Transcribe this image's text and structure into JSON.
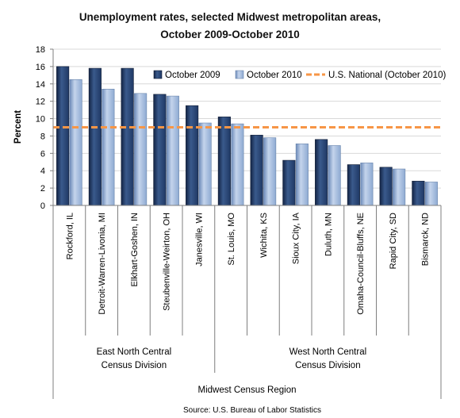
{
  "chart_data": {
    "type": "bar",
    "title_line1": "Unemployment rates, selected Midwest metropolitan areas,",
    "title_line2": "October 2009-October 2010",
    "ylabel": "Percent",
    "xlabel": "",
    "ylim": [
      0,
      18
    ],
    "yticks": [
      0,
      2,
      4,
      6,
      8,
      10,
      12,
      14,
      16,
      18
    ],
    "grid": true,
    "legend_position": "top-right",
    "categories": [
      "Rockford, IL",
      "Detroit-Warren-Livonia, MI",
      "Elkhart-Goshen, IN",
      "Steubenville-Weirton, OH",
      "Janesville, WI",
      "St. Louis, MO",
      "Wichita, KS",
      "Sioux City, IA",
      "Duluth, MN",
      "Omaha-Council-Bluffs, NE",
      "Rapid City, SD",
      "Bismarck, ND"
    ],
    "series": [
      {
        "name": "October 2009",
        "color": "#1f3864",
        "values": [
          16.0,
          15.8,
          15.8,
          12.8,
          11.5,
          10.2,
          8.1,
          5.2,
          7.6,
          4.7,
          4.4,
          2.8
        ]
      },
      {
        "name": "October 2010",
        "color": "#8eaad2",
        "values": [
          14.5,
          13.4,
          12.9,
          12.6,
          9.5,
          9.4,
          7.8,
          7.1,
          6.9,
          4.9,
          4.2,
          2.7
        ]
      }
    ],
    "reference_line": {
      "name": "U.S. National  (October 2010)",
      "value": 9.0,
      "color": "#f79646"
    },
    "groups": [
      {
        "line1": "East North Central",
        "line2": "Census Division",
        "count": 5
      },
      {
        "line1": "West North Central",
        "line2": "Census Division",
        "count": 7
      }
    ],
    "region_label": "Midwest Census Region",
    "source": "Source: U.S. Bureau of Labor Statistics"
  }
}
